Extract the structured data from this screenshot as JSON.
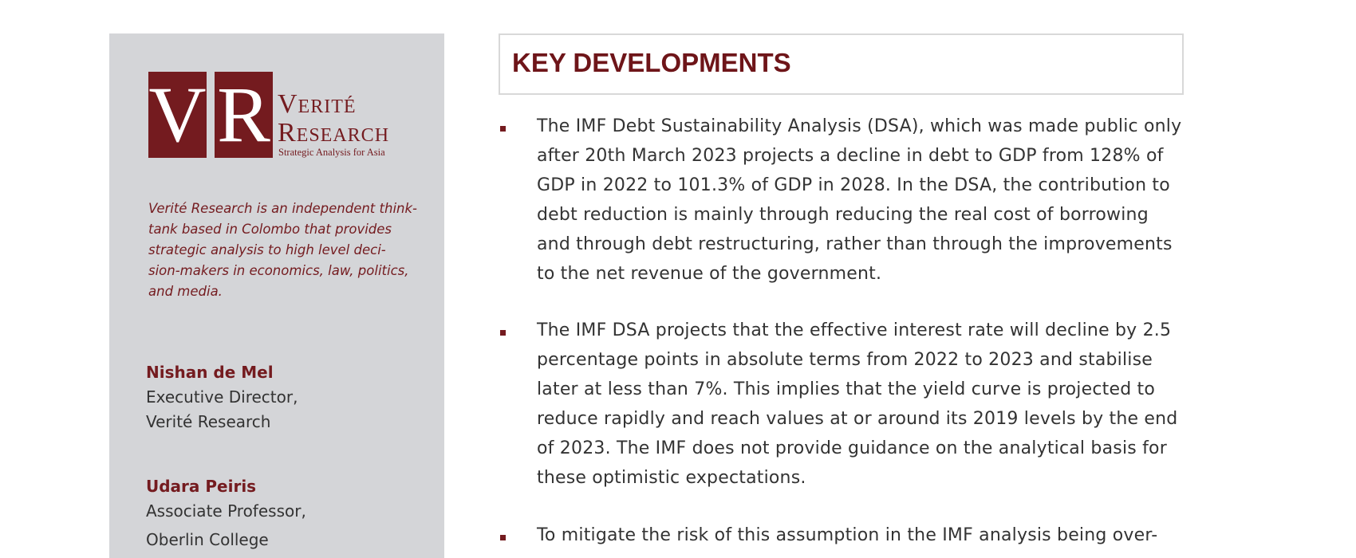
{
  "sidebar": {
    "logo": {
      "initials": [
        "V",
        "R"
      ],
      "name_line1": "Verité",
      "name_line2": "Research",
      "tagline": "Strategic Analysis for Asia"
    },
    "description": [
      "Verité Research is an independent think-",
      "tank based in Colombo that provides",
      "strategic analysis to high level deci-",
      "sion-makers in economics, law, politics,",
      "and media."
    ],
    "people": [
      {
        "name": "Nishan de Mel",
        "role": [
          "Executive Director,",
          "Verité Research"
        ]
      },
      {
        "name": "Udara Peiris",
        "role": [
          "Associate Professor,",
          "Oberlin College"
        ]
      }
    ]
  },
  "main": {
    "heading": "KEY DEVELOPMENTS",
    "bullets": [
      [
        "The IMF Debt Sustainability Analysis (DSA), which was made public only",
        "after 20th March 2023 projects a decline in debt to GDP from 128% of",
        "GDP in 2022 to 101.3% of GDP in 2028. In the DSA, the contribution to",
        "debt reduction is mainly through reducing the real cost of borrowing",
        "and through debt restructuring, rather than through the improvements",
        "to the net revenue of the government."
      ],
      [
        "The IMF DSA projects that the effective interest rate will decline by 2.5",
        "percentage points in absolute terms from 2022 to 2023 and stabilise",
        "later at less than 7%. This implies that the yield curve is projected to",
        "reduce rapidly and reach values at or around its 2019 levels by the end",
        "of 2023. The IMF does not provide guidance on the analytical basis for",
        "these optimistic expectations."
      ],
      [
        "To mitigate the risk of this assumption in the IMF analysis being over-"
      ]
    ]
  }
}
